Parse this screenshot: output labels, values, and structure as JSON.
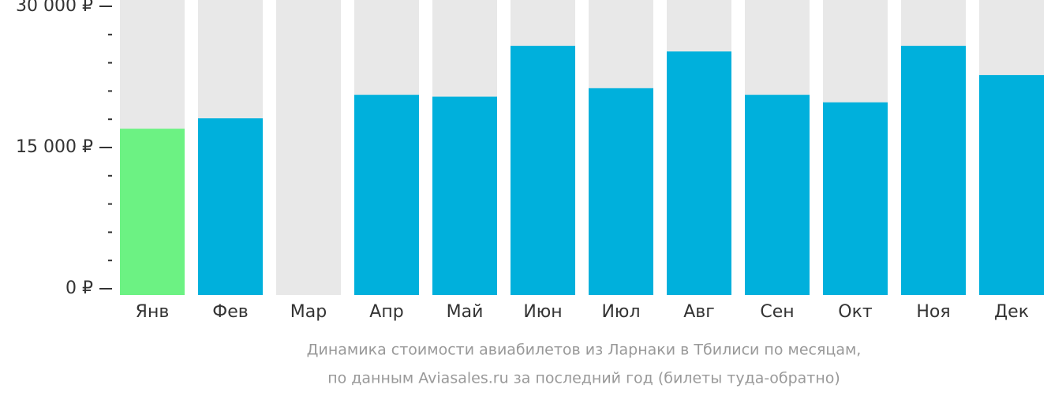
{
  "chart_data": {
    "type": "bar",
    "categories": [
      "Янв",
      "Фев",
      "Мар",
      "Апр",
      "Май",
      "Июн",
      "Июл",
      "Авг",
      "Сен",
      "Окт",
      "Ноя",
      "Дек"
    ],
    "values": [
      17000,
      18100,
      null,
      20600,
      20400,
      25800,
      21300,
      25200,
      20600,
      19800,
      25800,
      22700
    ],
    "colors": [
      "#6cf283",
      "#00b0dc",
      "#00b0dc",
      "#00b0dc",
      "#00b0dc",
      "#00b0dc",
      "#00b0dc",
      "#00b0dc",
      "#00b0dc",
      "#00b0dc",
      "#00b0dc",
      "#00b0dc"
    ],
    "background_color": "#e8e8e8",
    "ylim": [
      0,
      30000
    ],
    "yticks": [
      {
        "value": 0,
        "label": "0 ₽"
      },
      {
        "value": 15000,
        "label": "15 000 ₽"
      },
      {
        "value": 30000,
        "label": "30 000 ₽"
      }
    ],
    "minor_yticks": [
      3000,
      6000,
      9000,
      12000,
      18000,
      21000,
      24000,
      27000
    ],
    "caption": [
      "Динамика стоимости авиабилетов из Ларнаки в Тбилиси по месяцам,",
      "по данным Aviasales.ru за последний год (билеты туда-обратно)"
    ]
  }
}
